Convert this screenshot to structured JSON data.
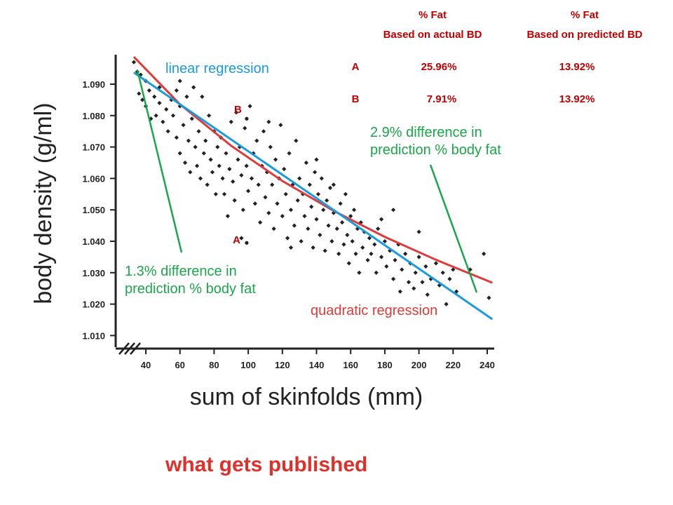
{
  "chart_data": {
    "type": "scatter",
    "xlabel": "sum of skinfolds (mm)",
    "ylabel": "body density (g/ml)",
    "xlim": [
      30,
      245
    ],
    "ylim": [
      1.005,
      1.1
    ],
    "x_ticks": [
      "40",
      "60",
      "80",
      "100",
      "120",
      "140",
      "160",
      "180",
      "200",
      "220",
      "240"
    ],
    "y_ticks": [
      "1.090",
      "1.080",
      "1.070",
      "1.060",
      "1.050",
      "1.040",
      "1.030",
      "1.020",
      "1.010"
    ],
    "points": [
      [
        33,
        1.097
      ],
      [
        35,
        1.094
      ],
      [
        36,
        1.087
      ],
      [
        37,
        1.093
      ],
      [
        38,
        1.085
      ],
      [
        40,
        1.091
      ],
      [
        40,
        1.083
      ],
      [
        42,
        1.088
      ],
      [
        43,
        1.079
      ],
      [
        45,
        1.086
      ],
      [
        46,
        1.08
      ],
      [
        48,
        1.084
      ],
      [
        48,
        1.089
      ],
      [
        50,
        1.078
      ],
      [
        52,
        1.082
      ],
      [
        53,
        1.075
      ],
      [
        55,
        1.085
      ],
      [
        56,
        1.08
      ],
      [
        58,
        1.088
      ],
      [
        58,
        1.073
      ],
      [
        60,
        1.083
      ],
      [
        60,
        1.068
      ],
      [
        62,
        1.077
      ],
      [
        63,
        1.065
      ],
      [
        64,
        1.086
      ],
      [
        65,
        1.072
      ],
      [
        66,
        1.062
      ],
      [
        67,
        1.079
      ],
      [
        68,
        1.089
      ],
      [
        69,
        1.07
      ],
      [
        70,
        1.064
      ],
      [
        71,
        1.075
      ],
      [
        72,
        1.06
      ],
      [
        73,
        1.086
      ],
      [
        74,
        1.068
      ],
      [
        75,
        1.072
      ],
      [
        76,
        1.058
      ],
      [
        77,
        1.08
      ],
      [
        78,
        1.066
      ],
      [
        79,
        1.062
      ],
      [
        80,
        1.075
      ],
      [
        81,
        1.055
      ],
      [
        82,
        1.07
      ],
      [
        83,
        1.064
      ],
      [
        84,
        1.073
      ],
      [
        85,
        1.06
      ],
      [
        86,
        1.055
      ],
      [
        87,
        1.068
      ],
      [
        88,
        1.048
      ],
      [
        89,
        1.063
      ],
      [
        90,
        1.078
      ],
      [
        91,
        1.059
      ],
      [
        92,
        1.053
      ],
      [
        93,
        1.081
      ],
      [
        94,
        1.066
      ],
      [
        95,
        1.07
      ],
      [
        96,
        1.061
      ],
      [
        97,
        1.05
      ],
      [
        98,
        1.076
      ],
      [
        99,
        1.064
      ],
      [
        100,
        1.056
      ],
      [
        101,
        1.083
      ],
      [
        102,
        1.06
      ],
      [
        103,
        1.068
      ],
      [
        104,
        1.052
      ],
      [
        105,
        1.072
      ],
      [
        106,
        1.058
      ],
      [
        107,
        1.046
      ],
      [
        108,
        1.064
      ],
      [
        109,
        1.075
      ],
      [
        110,
        1.054
      ],
      [
        111,
        1.062
      ],
      [
        112,
        1.049
      ],
      [
        113,
        1.07
      ],
      [
        114,
        1.058
      ],
      [
        115,
        1.044
      ],
      [
        116,
        1.066
      ],
      [
        117,
        1.052
      ],
      [
        118,
        1.06
      ],
      [
        119,
        1.077
      ],
      [
        120,
        1.048
      ],
      [
        121,
        1.063
      ],
      [
        122,
        1.055
      ],
      [
        123,
        1.041
      ],
      [
        124,
        1.068
      ],
      [
        125,
        1.05
      ],
      [
        126,
        1.058
      ],
      [
        127,
        1.045
      ],
      [
        128,
        1.072
      ],
      [
        129,
        1.053
      ],
      [
        130,
        1.06
      ],
      [
        131,
        1.04
      ],
      [
        132,
        1.055
      ],
      [
        133,
        1.048
      ],
      [
        134,
        1.065
      ],
      [
        135,
        1.044
      ],
      [
        136,
        1.058
      ],
      [
        137,
        1.051
      ],
      [
        138,
        1.038
      ],
      [
        139,
        1.062
      ],
      [
        140,
        1.047
      ],
      [
        141,
        1.055
      ],
      [
        142,
        1.042
      ],
      [
        143,
        1.06
      ],
      [
        144,
        1.05
      ],
      [
        145,
        1.037
      ],
      [
        146,
        1.053
      ],
      [
        147,
        1.045
      ],
      [
        148,
        1.057
      ],
      [
        149,
        1.04
      ],
      [
        150,
        1.049
      ],
      [
        152,
        1.044
      ],
      [
        153,
        1.036
      ],
      [
        154,
        1.052
      ],
      [
        155,
        1.046
      ],
      [
        156,
        1.039
      ],
      [
        157,
        1.055
      ],
      [
        158,
        1.042
      ],
      [
        159,
        1.033
      ],
      [
        160,
        1.048
      ],
      [
        161,
        1.04
      ],
      [
        162,
        1.05
      ],
      [
        163,
        1.036
      ],
      [
        164,
        1.044
      ],
      [
        165,
        1.03
      ],
      [
        166,
        1.046
      ],
      [
        167,
        1.038
      ],
      [
        168,
        1.043
      ],
      [
        170,
        1.034
      ],
      [
        171,
        1.041
      ],
      [
        172,
        1.036
      ],
      [
        174,
        1.039
      ],
      [
        175,
        1.03
      ],
      [
        176,
        1.044
      ],
      [
        178,
        1.035
      ],
      [
        180,
        1.04
      ],
      [
        181,
        1.032
      ],
      [
        183,
        1.037
      ],
      [
        185,
        1.028
      ],
      [
        186,
        1.034
      ],
      [
        188,
        1.039
      ],
      [
        189,
        1.024
      ],
      [
        190,
        1.031
      ],
      [
        192,
        1.036
      ],
      [
        194,
        1.027
      ],
      [
        195,
        1.033
      ],
      [
        197,
        1.025
      ],
      [
        198,
        1.03
      ],
      [
        200,
        1.035
      ],
      [
        202,
        1.027
      ],
      [
        204,
        1.032
      ],
      [
        205,
        1.023
      ],
      [
        207,
        1.028
      ],
      [
        210,
        1.033
      ],
      [
        212,
        1.026
      ],
      [
        214,
        1.03
      ],
      [
        216,
        1.02
      ],
      [
        218,
        1.028
      ],
      [
        220,
        1.031
      ],
      [
        222,
        1.024
      ],
      [
        230,
        1.031
      ],
      [
        238,
        1.036
      ],
      [
        241,
        1.022
      ],
      [
        96,
        1.041
      ],
      [
        178,
        1.047
      ],
      [
        125,
        1.038
      ],
      [
        140,
        1.066
      ],
      [
        112,
        1.078
      ],
      [
        150,
        1.058
      ],
      [
        60,
        1.091
      ],
      [
        200,
        1.043
      ],
      [
        185,
        1.05
      ]
    ],
    "linear_regression": {
      "label": "linear regression",
      "x": [
        33,
        243
      ],
      "y": [
        1.0937,
        1.0152
      ]
    },
    "quadratic_regression": {
      "label": "quadratic regression",
      "x": [
        33,
        60,
        90,
        120,
        150,
        180,
        210,
        243
      ],
      "y": [
        1.0987,
        1.0836,
        1.0704,
        1.0592,
        1.0497,
        1.0414,
        1.0341,
        1.0268
      ]
    },
    "annotations": [
      {
        "label": "A",
        "x": 95,
        "y": 1.0395
      },
      {
        "label": "B",
        "x": 95,
        "y": 1.079
      },
      {
        "line1": "1.3% difference in",
        "line2": "prediction % body fat",
        "x": 40,
        "y": 1.03
      },
      {
        "line1": "2.9% difference in",
        "line2": "prediction % body fat",
        "x": 195,
        "y": 1.071
      }
    ]
  },
  "table": {
    "col1_line1": "% Fat",
    "col1_line2": "Based on actual BD",
    "col2_line1": "% Fat",
    "col2_line2": "Based on predicted BD",
    "rows": [
      {
        "label": "A",
        "actual": "25.96%",
        "predicted": "13.92%"
      },
      {
        "label": "B",
        "actual": "7.91%",
        "predicted": "13.92%"
      }
    ]
  },
  "footer": "what gets published",
  "colors": {
    "points": "#222222",
    "linear": "#1a9be0",
    "quadratic": "#e03a3a",
    "annotation": "#1aa64a",
    "table": "#c00000",
    "footer": "#e0302a"
  }
}
